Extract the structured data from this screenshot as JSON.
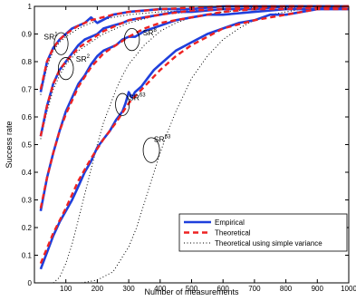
{
  "chart_data": {
    "type": "line",
    "xlabel": "Number of measurements",
    "ylabel": "Success rate",
    "xlim": [
      0,
      1000
    ],
    "ylim": [
      0,
      1
    ],
    "xticks": [
      100,
      200,
      300,
      400,
      500,
      600,
      700,
      800,
      900,
      1000
    ],
    "yticks": [
      0,
      0.1,
      0.2,
      0.3,
      0.4,
      0.5,
      0.6,
      0.7,
      0.8,
      0.9,
      1
    ],
    "grid": false,
    "legend_position": "bottom-right",
    "legend": [
      {
        "label": "Empirical",
        "style": "solid",
        "color": "#1f3fdc"
      },
      {
        "label": "Theoretical",
        "style": "dashed",
        "color": "#ee2222"
      },
      {
        "label": "Theoretical using simple variance",
        "style": "dotted",
        "color": "#000000"
      }
    ],
    "series": [
      {
        "group": "SR1",
        "kind": "empirical",
        "x": [
          20,
          40,
          60,
          80,
          100,
          120,
          140,
          160,
          180,
          200,
          250,
          300,
          400,
          500,
          600,
          700,
          800,
          900,
          1000
        ],
        "y": [
          0.69,
          0.8,
          0.85,
          0.88,
          0.9,
          0.92,
          0.93,
          0.94,
          0.96,
          0.94,
          0.97,
          0.98,
          0.99,
          0.99,
          1.0,
          1.0,
          1.0,
          1.0,
          1.0
        ]
      },
      {
        "group": "SR1",
        "kind": "theoretical",
        "x": [
          20,
          40,
          60,
          80,
          100,
          140,
          180,
          250,
          300,
          400,
          500,
          600,
          800,
          1000
        ],
        "y": [
          0.7,
          0.8,
          0.85,
          0.88,
          0.9,
          0.93,
          0.95,
          0.97,
          0.98,
          0.99,
          0.995,
          1.0,
          1.0,
          1.0
        ]
      },
      {
        "group": "SR2",
        "kind": "empirical",
        "x": [
          20,
          40,
          60,
          80,
          100,
          120,
          140,
          160,
          180,
          200,
          220,
          250,
          280,
          300,
          350,
          400,
          450,
          500,
          600,
          700,
          800,
          900,
          1000
        ],
        "y": [
          0.53,
          0.64,
          0.72,
          0.77,
          0.8,
          0.83,
          0.86,
          0.88,
          0.89,
          0.9,
          0.92,
          0.93,
          0.94,
          0.95,
          0.96,
          0.97,
          0.98,
          0.98,
          0.99,
          0.99,
          1.0,
          1.0,
          1.0
        ]
      },
      {
        "group": "SR2",
        "kind": "theoretical",
        "x": [
          20,
          40,
          60,
          80,
          100,
          140,
          180,
          220,
          260,
          300,
          400,
          500,
          600,
          800,
          1000
        ],
        "y": [
          0.53,
          0.64,
          0.72,
          0.77,
          0.8,
          0.85,
          0.88,
          0.91,
          0.93,
          0.95,
          0.97,
          0.985,
          0.99,
          1.0,
          1.0
        ]
      },
      {
        "group": "SR8",
        "kind": "empirical",
        "x": [
          20,
          40,
          60,
          80,
          100,
          120,
          140,
          160,
          180,
          200,
          220,
          240,
          260,
          280,
          300,
          320,
          350,
          400,
          450,
          500,
          550,
          600,
          700,
          800,
          900,
          1000
        ],
        "y": [
          0.26,
          0.38,
          0.47,
          0.55,
          0.62,
          0.67,
          0.72,
          0.75,
          0.79,
          0.82,
          0.84,
          0.85,
          0.86,
          0.88,
          0.89,
          0.89,
          0.91,
          0.93,
          0.95,
          0.96,
          0.97,
          0.97,
          0.98,
          0.99,
          0.99,
          1.0
        ]
      },
      {
        "group": "SR8",
        "kind": "theoretical",
        "x": [
          20,
          40,
          60,
          80,
          100,
          140,
          180,
          220,
          260,
          300,
          350,
          400,
          500,
          600,
          700,
          800,
          1000
        ],
        "y": [
          0.27,
          0.38,
          0.47,
          0.55,
          0.61,
          0.71,
          0.78,
          0.83,
          0.86,
          0.89,
          0.92,
          0.94,
          0.96,
          0.98,
          0.99,
          0.99,
          1.0
        ]
      },
      {
        "group": "SR63",
        "kind": "empirical",
        "x": [
          20,
          40,
          60,
          80,
          100,
          120,
          140,
          160,
          180,
          200,
          220,
          240,
          260,
          280,
          290,
          300,
          310,
          320,
          340,
          360,
          380,
          400,
          450,
          500,
          550,
          600,
          650,
          700,
          750,
          800,
          900,
          1000
        ],
        "y": [
          0.05,
          0.11,
          0.17,
          0.22,
          0.26,
          0.3,
          0.35,
          0.4,
          0.44,
          0.49,
          0.52,
          0.55,
          0.59,
          0.62,
          0.65,
          0.69,
          0.67,
          0.69,
          0.71,
          0.74,
          0.77,
          0.79,
          0.84,
          0.87,
          0.9,
          0.92,
          0.94,
          0.95,
          0.97,
          0.97,
          0.99,
          0.99
        ]
      },
      {
        "group": "SR63",
        "kind": "theoretical",
        "x": [
          20,
          60,
          100,
          140,
          180,
          220,
          260,
          300,
          350,
          400,
          450,
          500,
          550,
          600,
          700,
          800,
          900,
          1000
        ],
        "y": [
          0.07,
          0.18,
          0.27,
          0.37,
          0.45,
          0.52,
          0.58,
          0.65,
          0.71,
          0.77,
          0.82,
          0.86,
          0.89,
          0.92,
          0.95,
          0.97,
          0.99,
          0.99
        ]
      },
      {
        "group": "SR1",
        "kind": "simple-variance",
        "x": [
          20,
          40,
          60,
          80,
          100,
          140,
          180,
          250,
          300,
          400,
          600,
          1000
        ],
        "y": [
          0.68,
          0.78,
          0.84,
          0.87,
          0.89,
          0.92,
          0.94,
          0.96,
          0.97,
          0.98,
          0.99,
          1.0
        ]
      },
      {
        "group": "SR2",
        "kind": "simple-variance",
        "x": [
          20,
          40,
          60,
          80,
          100,
          140,
          180,
          220,
          260,
          300,
          400,
          500,
          600,
          800,
          1000
        ],
        "y": [
          0.52,
          0.62,
          0.7,
          0.75,
          0.79,
          0.84,
          0.87,
          0.9,
          0.92,
          0.94,
          0.97,
          0.98,
          0.99,
          1.0,
          1.0
        ]
      },
      {
        "group": "SR8",
        "kind": "simple-variance",
        "x": [
          60,
          80,
          100,
          120,
          140,
          160,
          180,
          200,
          220,
          240,
          260,
          280,
          300,
          350,
          400,
          450,
          500,
          600,
          700,
          800,
          1000
        ],
        "y": [
          0.0,
          0.02,
          0.07,
          0.14,
          0.23,
          0.32,
          0.41,
          0.5,
          0.58,
          0.64,
          0.7,
          0.75,
          0.79,
          0.86,
          0.91,
          0.94,
          0.96,
          0.98,
          0.99,
          1.0,
          1.0
        ]
      },
      {
        "group": "SR63",
        "kind": "simple-variance",
        "x": [
          150,
          200,
          250,
          300,
          325,
          350,
          375,
          400,
          425,
          450,
          500,
          550,
          600,
          650,
          700,
          750,
          800,
          850,
          900,
          950,
          1000
        ],
        "y": [
          0.0,
          0.01,
          0.04,
          0.13,
          0.2,
          0.29,
          0.38,
          0.47,
          0.55,
          0.62,
          0.74,
          0.82,
          0.88,
          0.92,
          0.95,
          0.97,
          0.98,
          0.99,
          0.99,
          1.0,
          1.0
        ]
      }
    ],
    "annotations": [
      {
        "text": "SR",
        "sup": "1",
        "x": 30,
        "y": 0.88,
        "ellipse": {
          "cx": 85,
          "cy": 0.865,
          "rx": 22,
          "ry": 0.04
        }
      },
      {
        "text": "SR",
        "sup": "2",
        "x": 132,
        "y": 0.8,
        "ellipse": {
          "cx": 100,
          "cy": 0.775,
          "rx": 24,
          "ry": 0.04
        }
      },
      {
        "text": "SR",
        "sup": "8",
        "x": 345,
        "y": 0.895,
        "ellipse": {
          "cx": 310,
          "cy": 0.88,
          "rx": 24,
          "ry": 0.04
        }
      },
      {
        "text": "SR",
        "sup": "63",
        "x": 300,
        "y": 0.66,
        "ellipse": {
          "cx": 280,
          "cy": 0.645,
          "rx": 22,
          "ry": 0.04
        }
      },
      {
        "text": "SR",
        "sup": "63",
        "x": 380,
        "y": 0.51,
        "ellipse": {
          "cx": 372,
          "cy": 0.48,
          "rx": 26,
          "ry": 0.045
        }
      }
    ],
    "colors": {
      "empirical": "#1f3fdc",
      "theoretical": "#ee2222",
      "simple_variance": "#000000"
    }
  }
}
